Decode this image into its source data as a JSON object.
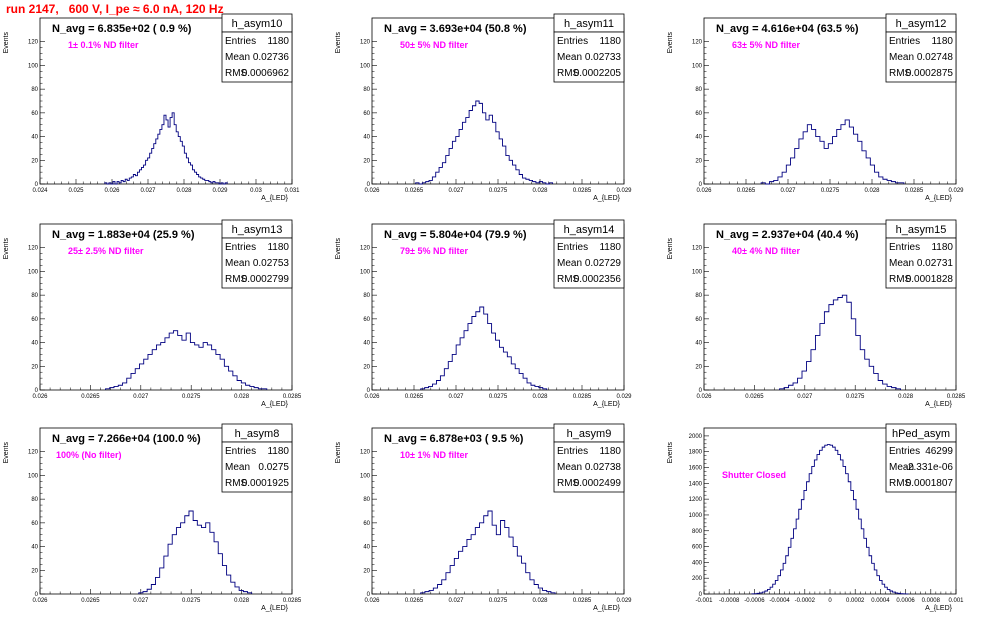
{
  "title": "run 2147,   600 V, I_pe ≈ 6.0 nA, 120 Hz",
  "chart_data": [
    {
      "type": "bar",
      "name": "h_asym10",
      "ylabel": "Events",
      "xlabel": "A_{LED}",
      "navg": "N_avg = 6.835e+02 ( 0.9 %)",
      "filter": "1± 0.1% ND filter",
      "stats": {
        "entries_label": "Entries",
        "entries": "1180",
        "mean_label": "Mean",
        "mean": "0.02736",
        "rms_label": "RMS",
        "rms": "0.0006962"
      },
      "xlim": [
        0.024,
        0.031
      ],
      "ylim": [
        0,
        140
      ],
      "xticks": [
        0.024,
        0.025,
        0.026,
        0.027,
        0.028,
        0.029,
        0.03,
        0.031
      ],
      "xtick_labels": [
        "0.024",
        "0.025",
        "0.026",
        "0.027",
        "0.028",
        "0.029",
        "0.03",
        "0.031"
      ],
      "yticks": [
        0,
        20,
        40,
        60,
        80,
        100,
        120
      ],
      "bin_edges": [
        0.0258,
        0.0292
      ],
      "values": [
        1,
        0,
        1,
        0,
        2,
        0,
        2,
        1,
        3,
        2,
        4,
        3,
        5,
        6,
        8,
        7,
        10,
        12,
        14,
        16,
        20,
        22,
        26,
        30,
        34,
        38,
        42,
        46,
        50,
        58,
        54,
        48,
        56,
        60,
        50,
        44,
        40,
        36,
        32,
        26,
        22,
        18,
        16,
        12,
        10,
        8,
        6,
        5,
        4,
        3,
        3,
        2,
        1,
        2,
        1,
        1,
        0,
        1,
        0,
        1
      ]
    },
    {
      "type": "bar",
      "name": "h_asym11",
      "ylabel": "Events",
      "xlabel": "A_{LED}",
      "navg": "N_avg = 3.693e+04 (50.8 %)",
      "filter": "50± 5% ND filter",
      "stats": {
        "entries_label": "Entries",
        "entries": "1180",
        "mean_label": "Mean",
        "mean": "0.02733",
        "rms_label": "RMS",
        "rms": "0.0002205"
      },
      "xlim": [
        0.026,
        0.029
      ],
      "ylim": [
        0,
        140
      ],
      "xticks": [
        0.026,
        0.0265,
        0.027,
        0.0275,
        0.028,
        0.0285,
        0.029
      ],
      "xtick_labels": [
        "0.026",
        "0.0265",
        "0.027",
        "0.0275",
        "0.028",
        "0.0285",
        "0.029"
      ],
      "yticks": [
        0,
        20,
        40,
        60,
        80,
        100,
        120
      ],
      "bin_edges": [
        0.02652,
        0.02815
      ],
      "values": [
        1,
        0,
        1,
        2,
        3,
        6,
        10,
        14,
        18,
        24,
        30,
        36,
        40,
        46,
        52,
        56,
        62,
        66,
        70,
        68,
        60,
        54,
        58,
        52,
        44,
        38,
        32,
        24,
        20,
        16,
        12,
        8,
        5,
        4,
        3,
        2,
        1,
        2,
        1,
        0,
        1
      ]
    },
    {
      "type": "bar",
      "name": "h_asym12",
      "ylabel": "Events",
      "xlabel": "A_{LED}",
      "navg": "N_avg = 4.616e+04 (63.5 %)",
      "filter": "63± 5% ND filter",
      "stats": {
        "entries_label": "Entries",
        "entries": "1180",
        "mean_label": "Mean",
        "mean": "0.02748",
        "rms_label": "RMS",
        "rms": "0.0002875"
      },
      "xlim": [
        0.026,
        0.029
      ],
      "ylim": [
        0,
        140
      ],
      "xticks": [
        0.026,
        0.0265,
        0.027,
        0.0275,
        0.028,
        0.0285,
        0.029
      ],
      "xtick_labels": [
        "0.026",
        "0.0265",
        "0.027",
        "0.0275",
        "0.028",
        "0.0285",
        "0.029"
      ],
      "yticks": [
        0,
        20,
        40,
        60,
        80,
        100,
        120
      ],
      "bin_edges": [
        0.02668,
        0.02838
      ],
      "values": [
        1,
        0,
        2,
        3,
        6,
        10,
        16,
        22,
        30,
        38,
        44,
        50,
        46,
        40,
        36,
        30,
        34,
        40,
        46,
        50,
        54,
        48,
        42,
        36,
        28,
        22,
        16,
        10,
        6,
        4,
        3,
        2,
        1,
        1
      ]
    },
    {
      "type": "bar",
      "name": "h_asym13",
      "ylabel": "Events",
      "xlabel": "A_{LED}",
      "navg": "N_avg = 1.883e+04 (25.9 %)",
      "filter": "25± 2.5% ND filter",
      "stats": {
        "entries_label": "Entries",
        "entries": "1180",
        "mean_label": "Mean",
        "mean": "0.02753",
        "rms_label": "RMS",
        "rms": "0.0002799"
      },
      "xlim": [
        0.026,
        0.0285
      ],
      "ylim": [
        0,
        140
      ],
      "xticks": [
        0.026,
        0.0265,
        0.027,
        0.0275,
        0.028,
        0.0285
      ],
      "xtick_labels": [
        "0.026",
        "0.0265",
        "0.027",
        "0.0275",
        "0.028",
        "0.0285"
      ],
      "yticks": [
        0,
        20,
        40,
        60,
        80,
        100,
        120
      ],
      "bin_edges": [
        0.02665,
        0.02825
      ],
      "values": [
        1,
        2,
        3,
        4,
        6,
        10,
        14,
        18,
        22,
        26,
        30,
        34,
        38,
        40,
        44,
        48,
        50,
        46,
        42,
        48,
        40,
        38,
        36,
        40,
        38,
        34,
        30,
        26,
        20,
        16,
        12,
        8,
        6,
        4,
        3,
        2,
        1,
        1
      ]
    },
    {
      "type": "bar",
      "name": "h_asym14",
      "ylabel": "Events",
      "xlabel": "A_{LED}",
      "navg": "N_avg = 5.804e+04 (79.9 %)",
      "filter": "79± 5% ND filter",
      "stats": {
        "entries_label": "Entries",
        "entries": "1180",
        "mean_label": "Mean",
        "mean": "0.02729",
        "rms_label": "RMS",
        "rms": "0.0002356"
      },
      "xlim": [
        0.026,
        0.029
      ],
      "ylim": [
        0,
        140
      ],
      "xticks": [
        0.026,
        0.0265,
        0.027,
        0.0275,
        0.028,
        0.0285,
        0.029
      ],
      "xtick_labels": [
        "0.026",
        "0.0265",
        "0.027",
        "0.0275",
        "0.028",
        "0.0285",
        "0.029"
      ],
      "yticks": [
        0,
        20,
        40,
        60,
        80,
        100,
        120
      ],
      "bin_edges": [
        0.02658,
        0.02808
      ],
      "values": [
        1,
        2,
        3,
        5,
        8,
        12,
        18,
        24,
        30,
        38,
        44,
        50,
        56,
        62,
        66,
        70,
        64,
        56,
        48,
        42,
        36,
        32,
        28,
        22,
        18,
        14,
        10,
        6,
        4,
        3,
        2,
        1
      ]
    },
    {
      "type": "bar",
      "name": "h_asym15",
      "ylabel": "Events",
      "xlabel": "A_{LED}",
      "navg": "N_avg = 2.937e+04 (40.4 %)",
      "filter": "40± 4% ND filter",
      "stats": {
        "entries_label": "Entries",
        "entries": "1180",
        "mean_label": "Mean",
        "mean": "0.02731",
        "rms_label": "RMS",
        "rms": "0.0001828"
      },
      "xlim": [
        0.026,
        0.0285
      ],
      "ylim": [
        0,
        140
      ],
      "xticks": [
        0.026,
        0.0265,
        0.027,
        0.0275,
        0.028,
        0.0285
      ],
      "xtick_labels": [
        "0.026",
        "0.0265",
        "0.027",
        "0.0275",
        "0.028",
        "0.0285"
      ],
      "yticks": [
        0,
        20,
        40,
        60,
        80,
        100,
        120
      ],
      "bin_edges": [
        0.02675,
        0.02795
      ],
      "values": [
        1,
        2,
        4,
        6,
        10,
        16,
        24,
        34,
        46,
        56,
        66,
        72,
        76,
        78,
        80,
        74,
        60,
        46,
        34,
        26,
        20,
        14,
        8,
        5,
        3,
        2,
        1
      ]
    },
    {
      "type": "bar",
      "name": "h_asym8",
      "ylabel": "Events",
      "xlabel": "A_{LED}",
      "navg": "N_avg = 7.266e+04 (100.0 %)",
      "filter": "100% (No filter)",
      "stats": {
        "entries_label": "Entries",
        "entries": "1180",
        "mean_label": "Mean",
        "mean": "0.0275",
        "rms_label": "RMS",
        "rms": "0.0001925"
      },
      "xlim": [
        0.026,
        0.0285
      ],
      "ylim": [
        0,
        140
      ],
      "xticks": [
        0.026,
        0.0265,
        0.027,
        0.0275,
        0.028,
        0.0285
      ],
      "xtick_labels": [
        "0.026",
        "0.0265",
        "0.027",
        "0.0275",
        "0.028",
        "0.0285"
      ],
      "yticks": [
        0,
        20,
        40,
        60,
        80,
        100,
        120
      ],
      "bin_edges": [
        0.02698,
        0.0281
      ],
      "values": [
        1,
        2,
        4,
        8,
        14,
        22,
        32,
        42,
        50,
        56,
        60,
        66,
        70,
        62,
        58,
        56,
        60,
        52,
        44,
        34,
        24,
        16,
        10,
        6,
        3,
        2,
        1
      ]
    },
    {
      "type": "bar",
      "name": "h_asym9",
      "ylabel": "Events",
      "xlabel": "A_{LED}",
      "navg": "N_avg = 6.878e+03 ( 9.5 %)",
      "filter": "10± 1% ND filter",
      "stats": {
        "entries_label": "Entries",
        "entries": "1180",
        "mean_label": "Mean",
        "mean": "0.02738",
        "rms_label": "RMS",
        "rms": "0.0002499"
      },
      "xlim": [
        0.026,
        0.029
      ],
      "ylim": [
        0,
        140
      ],
      "xticks": [
        0.026,
        0.0265,
        0.027,
        0.0275,
        0.028,
        0.0285,
        0.029
      ],
      "xtick_labels": [
        "0.026",
        "0.0265",
        "0.027",
        "0.0275",
        "0.028",
        "0.0285",
        "0.029"
      ],
      "yticks": [
        0,
        20,
        40,
        60,
        80,
        100,
        120
      ],
      "bin_edges": [
        0.02658,
        0.02818
      ],
      "values": [
        1,
        2,
        3,
        5,
        8,
        12,
        18,
        24,
        30,
        36,
        40,
        46,
        50,
        56,
        60,
        66,
        70,
        58,
        50,
        62,
        56,
        48,
        40,
        32,
        26,
        18,
        12,
        8,
        5,
        3,
        2,
        1
      ]
    },
    {
      "type": "bar",
      "name": "hPed_asym",
      "ylabel": "Events",
      "xlabel": "A_{LED}",
      "navg": "",
      "filter": "Shutter Closed",
      "stats": {
        "entries_label": "Entries",
        "entries": "46299",
        "mean_label": "Mean",
        "mean": "-2.331e-06",
        "rms_label": "RMS",
        "rms": "0.0001807"
      },
      "xlim": [
        -0.001,
        0.001
      ],
      "ylim": [
        0,
        2100
      ],
      "xticks": [
        -0.001,
        -0.0008,
        -0.0006,
        -0.0004,
        -0.0002,
        0,
        0.0002,
        0.0004,
        0.0006,
        0.0008,
        0.001
      ],
      "xtick_labels": [
        "-0.001",
        "-0.0008",
        "-0.0006",
        "-0.0004",
        "-0.0002",
        "0",
        "0.0002",
        "0.0004",
        "0.0006",
        "0.0008",
        "0.001"
      ],
      "yticks": [
        0,
        200,
        400,
        600,
        800,
        1000,
        1200,
        1400,
        1600,
        1800,
        2000
      ],
      "bin_edges": [
        -0.00062,
        0.00062
      ],
      "values": [
        2,
        4,
        8,
        14,
        24,
        38,
        58,
        86,
        124,
        172,
        232,
        304,
        388,
        484,
        590,
        704,
        824,
        948,
        1072,
        1194,
        1310,
        1420,
        1522,
        1614,
        1696,
        1764,
        1818,
        1858,
        1882,
        1890,
        1882,
        1858,
        1818,
        1764,
        1696,
        1614,
        1522,
        1420,
        1310,
        1194,
        1072,
        948,
        824,
        704,
        590,
        484,
        388,
        304,
        232,
        172,
        124,
        86,
        58,
        38,
        24,
        14,
        8,
        4,
        2,
        1
      ]
    }
  ]
}
